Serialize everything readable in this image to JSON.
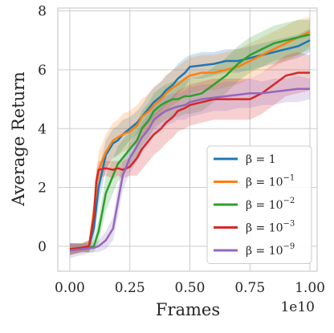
{
  "chart_data": {
    "type": "line",
    "title": "",
    "xlabel": "Frames",
    "ylabel": "Average Return",
    "x_offset_label": "1e10",
    "xlim": [
      -0.05,
      1.03
    ],
    "ylim": [
      -0.85,
      8.1
    ],
    "xticks": [
      0.0,
      0.25,
      0.5,
      0.75,
      1.0
    ],
    "xtick_labels": [
      "0.00",
      "0.25",
      "0.50",
      "0.75",
      "1.00"
    ],
    "yticks": [
      0,
      2,
      4,
      6,
      8
    ],
    "ytick_labels": [
      "0",
      "2",
      "4",
      "6",
      "8"
    ],
    "grid": true,
    "legend_position": "lower-right",
    "series": [
      {
        "name": "β = 1",
        "name_base": "β = 1",
        "name_exp": "",
        "color": "#1f77b4",
        "x": [
          0.0,
          0.05,
          0.08,
          0.1,
          0.12,
          0.15,
          0.18,
          0.2,
          0.22,
          0.25,
          0.28,
          0.3,
          0.33,
          0.35,
          0.38,
          0.4,
          0.43,
          0.45,
          0.48,
          0.5,
          0.55,
          0.6,
          0.65,
          0.7,
          0.75,
          0.8,
          0.85,
          0.9,
          0.95,
          1.0
        ],
        "y": [
          -0.1,
          -0.05,
          0.0,
          0.6,
          2.0,
          3.1,
          3.5,
          3.6,
          3.8,
          4.0,
          4.2,
          4.4,
          4.7,
          4.9,
          5.1,
          5.3,
          5.5,
          5.7,
          5.9,
          6.1,
          6.15,
          6.2,
          6.3,
          6.3,
          6.4,
          6.5,
          6.6,
          6.7,
          6.8,
          7.0
        ],
        "band_lower": [
          -0.3,
          -0.2,
          -0.2,
          0.2,
          1.4,
          2.6,
          3.0,
          3.1,
          3.3,
          3.6,
          3.8,
          4.0,
          4.2,
          4.4,
          4.6,
          4.8,
          5.0,
          5.2,
          5.4,
          5.7,
          5.7,
          5.8,
          5.9,
          5.9,
          6.0,
          6.1,
          6.2,
          6.3,
          6.4,
          6.6
        ],
        "band_upper": [
          0.1,
          0.1,
          0.2,
          1.0,
          2.6,
          3.6,
          4.0,
          4.1,
          4.3,
          4.4,
          4.6,
          4.8,
          5.2,
          5.4,
          5.6,
          5.8,
          6.0,
          6.2,
          6.4,
          6.5,
          6.6,
          6.6,
          6.7,
          6.7,
          6.8,
          6.9,
          7.0,
          7.1,
          7.2,
          7.4
        ]
      },
      {
        "name": "β = 10^-1",
        "name_base": "β = 10",
        "name_exp": "−1",
        "color": "#ff7f0e",
        "x": [
          0.0,
          0.05,
          0.08,
          0.1,
          0.12,
          0.15,
          0.18,
          0.2,
          0.22,
          0.25,
          0.28,
          0.3,
          0.33,
          0.35,
          0.38,
          0.4,
          0.43,
          0.45,
          0.48,
          0.5,
          0.55,
          0.6,
          0.65,
          0.7,
          0.75,
          0.8,
          0.85,
          0.9,
          0.95,
          1.0
        ],
        "y": [
          -0.1,
          -0.05,
          0.0,
          1.2,
          2.6,
          3.2,
          3.6,
          3.7,
          3.8,
          3.9,
          4.1,
          4.4,
          4.6,
          4.8,
          5.0,
          5.2,
          5.4,
          5.5,
          5.7,
          5.8,
          5.9,
          5.9,
          6.0,
          6.1,
          6.3,
          6.5,
          6.7,
          6.9,
          7.1,
          7.3
        ],
        "band_lower": [
          -0.3,
          -0.2,
          -0.2,
          0.7,
          2.0,
          2.6,
          3.0,
          3.1,
          3.2,
          3.3,
          3.5,
          3.8,
          4.0,
          4.2,
          4.4,
          4.6,
          4.8,
          4.9,
          5.1,
          5.2,
          5.3,
          5.3,
          5.4,
          5.5,
          5.7,
          5.9,
          6.1,
          6.3,
          6.5,
          6.8
        ],
        "band_upper": [
          0.1,
          0.1,
          0.2,
          1.7,
          3.2,
          3.8,
          4.2,
          4.3,
          4.5,
          4.6,
          4.8,
          5.0,
          5.2,
          5.4,
          5.6,
          5.8,
          6.0,
          6.1,
          6.3,
          6.4,
          6.5,
          6.5,
          6.6,
          6.7,
          6.9,
          7.1,
          7.3,
          7.5,
          7.7,
          7.8
        ]
      },
      {
        "name": "β = 10^-2",
        "name_base": "β = 10",
        "name_exp": "−2",
        "color": "#2ca02c",
        "x": [
          0.0,
          0.05,
          0.08,
          0.1,
          0.12,
          0.15,
          0.18,
          0.2,
          0.22,
          0.25,
          0.28,
          0.3,
          0.33,
          0.35,
          0.38,
          0.4,
          0.43,
          0.45,
          0.48,
          0.5,
          0.55,
          0.6,
          0.65,
          0.7,
          0.75,
          0.8,
          0.85,
          0.9,
          0.95,
          1.0
        ],
        "y": [
          -0.1,
          -0.05,
          -0.05,
          0.0,
          0.5,
          1.8,
          2.4,
          2.8,
          3.0,
          3.3,
          3.6,
          4.0,
          4.3,
          4.6,
          4.8,
          4.9,
          5.0,
          5.0,
          5.1,
          5.1,
          5.2,
          5.5,
          5.8,
          6.2,
          6.5,
          6.7,
          6.9,
          7.0,
          7.1,
          7.2
        ],
        "band_lower": [
          -0.3,
          -0.2,
          -0.2,
          -0.2,
          0.1,
          1.2,
          1.8,
          2.2,
          2.4,
          2.7,
          3.0,
          3.4,
          3.7,
          4.0,
          4.2,
          4.3,
          4.4,
          4.4,
          4.5,
          4.5,
          4.6,
          4.9,
          5.2,
          5.6,
          5.9,
          6.1,
          6.3,
          6.4,
          6.5,
          6.7
        ],
        "band_upper": [
          0.1,
          0.1,
          0.1,
          0.2,
          0.9,
          2.4,
          3.0,
          3.4,
          3.6,
          3.9,
          4.2,
          4.6,
          4.9,
          5.2,
          5.4,
          5.5,
          5.6,
          5.6,
          5.7,
          5.7,
          5.8,
          6.1,
          6.4,
          6.8,
          7.1,
          7.3,
          7.5,
          7.6,
          7.7,
          7.7
        ]
      },
      {
        "name": "β = 10^-3",
        "name_base": "β = 10",
        "name_exp": "−3",
        "color": "#d62728",
        "x": [
          0.0,
          0.05,
          0.08,
          0.1,
          0.11,
          0.12,
          0.15,
          0.18,
          0.2,
          0.22,
          0.25,
          0.28,
          0.3,
          0.33,
          0.35,
          0.38,
          0.4,
          0.43,
          0.45,
          0.48,
          0.5,
          0.55,
          0.6,
          0.65,
          0.7,
          0.75,
          0.8,
          0.85,
          0.9,
          0.95,
          1.0
        ],
        "y": [
          -0.1,
          -0.05,
          0.0,
          1.0,
          2.2,
          2.6,
          2.65,
          2.6,
          2.65,
          2.6,
          2.7,
          3.0,
          3.3,
          3.6,
          3.8,
          4.0,
          4.2,
          4.4,
          4.6,
          4.7,
          4.8,
          4.9,
          5.0,
          5.0,
          5.0,
          5.0,
          5.2,
          5.5,
          5.8,
          5.9,
          5.9
        ],
        "band_lower": [
          -0.3,
          -0.2,
          -0.2,
          0.6,
          1.8,
          2.3,
          2.4,
          2.3,
          2.4,
          2.3,
          2.4,
          2.4,
          2.6,
          2.9,
          3.1,
          3.3,
          3.5,
          3.7,
          3.9,
          4.0,
          4.1,
          4.2,
          4.3,
          4.3,
          4.3,
          4.3,
          4.5,
          4.8,
          5.1,
          5.2,
          5.3
        ],
        "band_upper": [
          0.1,
          0.1,
          0.2,
          1.4,
          2.6,
          2.9,
          2.9,
          2.9,
          2.9,
          2.9,
          3.0,
          3.6,
          4.0,
          4.3,
          4.5,
          4.7,
          4.9,
          5.1,
          5.3,
          5.4,
          5.5,
          5.6,
          5.7,
          5.7,
          5.7,
          5.7,
          5.9,
          6.2,
          6.5,
          6.6,
          6.5
        ]
      },
      {
        "name": "β = 10^-9",
        "name_base": "β = 10",
        "name_exp": "−9",
        "color": "#9467bd",
        "x": [
          0.0,
          0.05,
          0.1,
          0.12,
          0.15,
          0.18,
          0.2,
          0.22,
          0.25,
          0.28,
          0.3,
          0.33,
          0.35,
          0.38,
          0.4,
          0.43,
          0.45,
          0.48,
          0.5,
          0.55,
          0.6,
          0.65,
          0.7,
          0.75,
          0.8,
          0.85,
          0.9,
          0.95,
          1.0
        ],
        "y": [
          -0.15,
          -0.1,
          -0.05,
          0.0,
          0.2,
          0.6,
          1.5,
          2.4,
          3.0,
          3.4,
          3.7,
          4.0,
          4.3,
          4.5,
          4.6,
          4.7,
          4.75,
          4.8,
          4.9,
          5.0,
          5.05,
          5.1,
          5.15,
          5.2,
          5.2,
          5.25,
          5.3,
          5.35,
          5.35
        ],
        "band_lower": [
          -0.4,
          -0.3,
          -0.2,
          -0.2,
          -0.1,
          0.2,
          1.0,
          1.9,
          2.5,
          2.9,
          3.2,
          3.5,
          3.8,
          4.0,
          4.1,
          4.2,
          4.3,
          4.3,
          4.4,
          4.5,
          4.6,
          4.6,
          4.7,
          4.7,
          4.8,
          4.8,
          4.9,
          4.9,
          5.0
        ],
        "band_upper": [
          0.1,
          0.1,
          0.1,
          0.2,
          0.5,
          1.0,
          2.0,
          2.9,
          3.5,
          3.9,
          4.2,
          4.5,
          4.8,
          5.0,
          5.1,
          5.2,
          5.2,
          5.3,
          5.4,
          5.5,
          5.5,
          5.6,
          5.6,
          5.7,
          5.6,
          5.7,
          5.7,
          5.8,
          5.7
        ]
      }
    ]
  }
}
